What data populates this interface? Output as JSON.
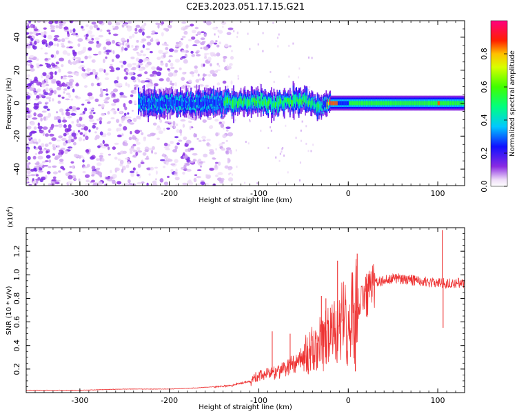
{
  "chart_data": [
    {
      "type": "heatmap",
      "title": "C2E3.2023.051.17.15.G21",
      "xlabel": "Height of straight line (km)",
      "ylabel": "Frequency (Hz)",
      "xlim": [
        -360,
        130
      ],
      "ylim": [
        -50,
        50
      ],
      "xticks": [
        -300,
        -200,
        -100,
        0,
        100
      ],
      "yticks": [
        -40,
        -20,
        0,
        20,
        40
      ],
      "colorbar": {
        "label": "Normalized spectral amplitude",
        "range": [
          0,
          1
        ],
        "ticks": [
          "0.0",
          "0.2",
          "0.4",
          "0.6",
          "0.8"
        ],
        "colormap": "rainbow (white-violet-blue-cyan-green-yellow-red-magenta)"
      },
      "signal_band": {
        "center_hz": [
          [
            -230,
            0
          ],
          [
            -200,
            0
          ],
          [
            -150,
            0
          ],
          [
            -110,
            1
          ],
          [
            -80,
            0
          ],
          [
            -50,
            2
          ],
          [
            -35,
            -2
          ],
          [
            -25,
            0
          ],
          [
            0,
            0
          ],
          [
            50,
            0
          ],
          [
            100,
            0
          ],
          [
            130,
            0
          ]
        ],
        "peak_amplitude_regions": [
          {
            "x": [
              -25,
              -12
            ],
            "level": 0.85
          },
          {
            "x": [
              99,
              102
            ],
            "level": 0.85
          },
          {
            "x": [
              -140,
              -30
            ],
            "level": 0.5
          },
          {
            "x": [
              0,
              130
            ],
            "level": 0.55
          }
        ]
      },
      "noise_region": {
        "x": [
          -360,
          -150
        ],
        "level": 0.15
      }
    },
    {
      "type": "line",
      "xlabel": "Height of straight line (km)",
      "ylabel": "SNR (10 * v/v)",
      "scale_label": "(x10",
      "scale_exponent": "4",
      "scale_close": ")",
      "xlim": [
        -360,
        130
      ],
      "ylim": [
        0,
        1.4
      ],
      "xticks": [
        -300,
        -200,
        -100,
        0,
        100
      ],
      "yticks": [
        0.2,
        0.4,
        0.6,
        0.8,
        1.0,
        1.2
      ],
      "color": "#ee3333",
      "series": [
        {
          "x": [
            -360,
            -300,
            -250,
            -200,
            -170,
            -150,
            -130,
            -120,
            -110,
            -100,
            -90,
            -80,
            -70,
            -60,
            -50,
            -45,
            -40,
            -30,
            -20,
            -10,
            0,
            10,
            20,
            30,
            40,
            50,
            60,
            80,
            100,
            110,
            130
          ],
          "y": [
            0.02,
            0.02,
            0.03,
            0.03,
            0.04,
            0.05,
            0.06,
            0.08,
            0.1,
            0.14,
            0.16,
            0.18,
            0.2,
            0.25,
            0.3,
            0.32,
            0.34,
            0.4,
            0.48,
            0.55,
            0.6,
            0.72,
            0.82,
            0.92,
            0.96,
            0.97,
            0.96,
            0.95,
            0.93,
            0.93,
            0.93
          ]
        }
      ],
      "spikes": [
        {
          "x": -85,
          "y": 0.52
        },
        {
          "x": -65,
          "y": 0.5
        },
        {
          "x": -30,
          "y": 0.82
        },
        {
          "x": -25,
          "y": 0.8
        },
        {
          "x": -12,
          "y": 1.12
        },
        {
          "x": 10,
          "y": 1.18
        },
        {
          "x": 8,
          "y": 0.18
        },
        {
          "x": 105,
          "y": 1.38
        },
        {
          "x": 106,
          "y": 0.55
        }
      ]
    }
  ]
}
